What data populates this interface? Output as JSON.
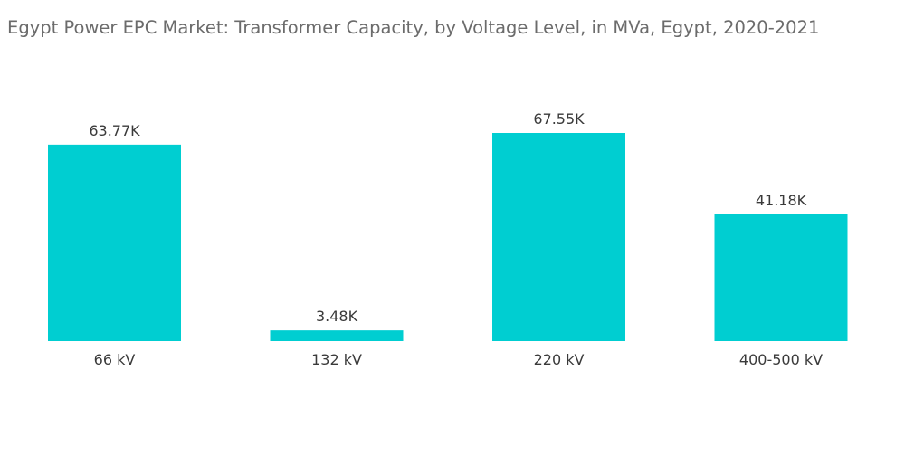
{
  "chart_data": {
    "type": "bar",
    "title": "Egypt Power EPC Market: Transformer Capacity, by Voltage Level, in MVa, Egypt, 2020-2021",
    "categories": [
      "66 kV",
      "132 kV",
      "220 kV",
      "400-500 kV"
    ],
    "values": [
      63770,
      3480,
      67550,
      41180
    ],
    "data_labels": [
      "63.77K",
      "3.48K",
      "67.55K",
      "41.18K"
    ],
    "xlabel": "",
    "ylabel": "",
    "ylim": [
      0,
      67550
    ],
    "grid": false,
    "legend": "none",
    "bar_color": "#00CED1"
  }
}
